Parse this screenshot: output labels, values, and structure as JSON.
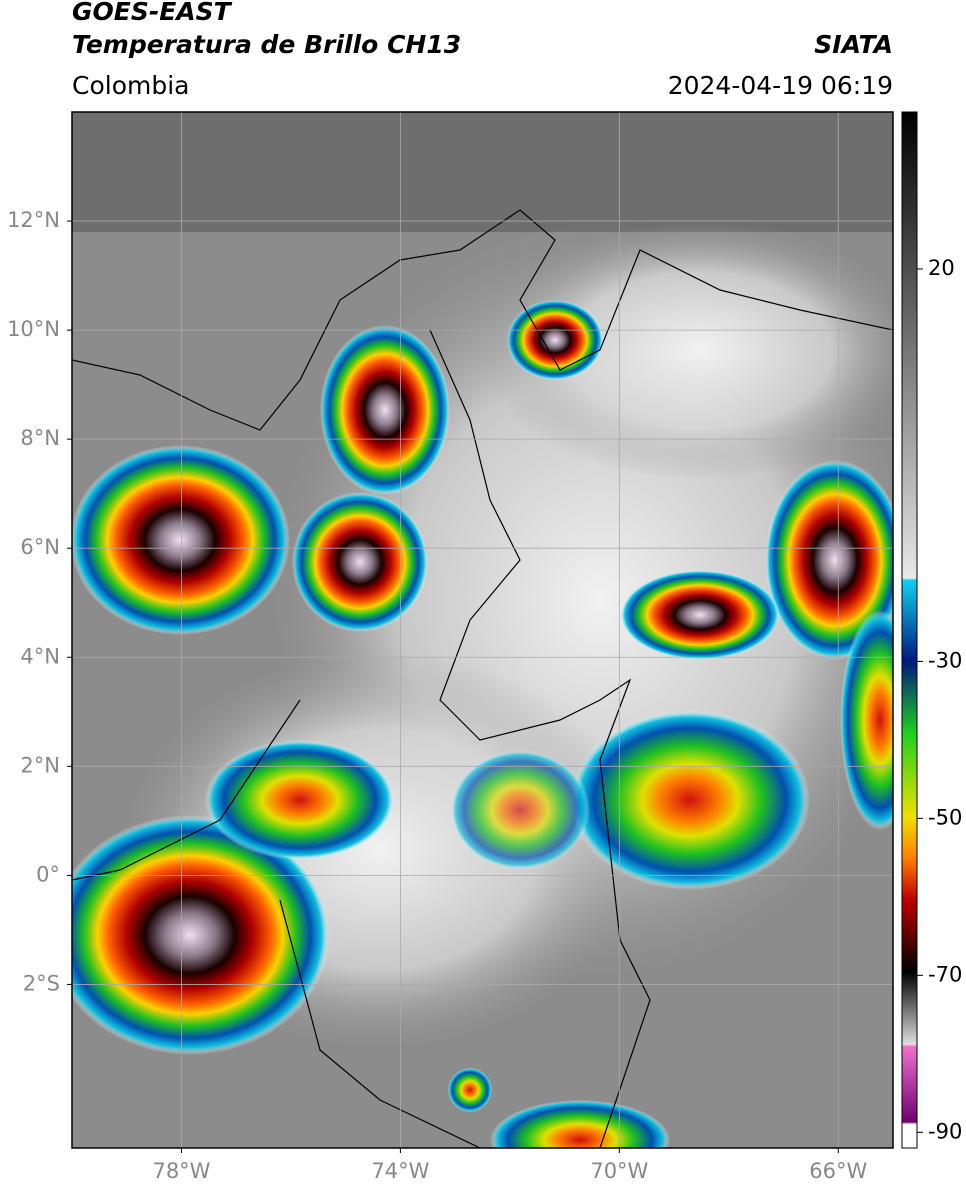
{
  "header": {
    "title": "GOES-EAST",
    "subtitle": "Temperatura de Brillo CH13",
    "source": "SIATA",
    "region": "Colombia",
    "datetime": "2024-04-19 06:19"
  },
  "map": {
    "xlim": [
      -80,
      -65
    ],
    "ylim": [
      -5,
      14
    ],
    "xticks": [
      {
        "value": -78,
        "label": "78°W"
      },
      {
        "value": -74,
        "label": "74°W"
      },
      {
        "value": -70,
        "label": "70°W"
      },
      {
        "value": -66,
        "label": "66°W"
      }
    ],
    "yticks": [
      {
        "value": 12,
        "label": "12°N"
      },
      {
        "value": 10,
        "label": "10°N"
      },
      {
        "value": 8,
        "label": "8°N"
      },
      {
        "value": 6,
        "label": "6°N"
      },
      {
        "value": 4,
        "label": "4°N"
      },
      {
        "value": 2,
        "label": "2°N"
      },
      {
        "value": 0,
        "label": "0°"
      },
      {
        "value": -2,
        "label": "2°S"
      }
    ],
    "grid": true
  },
  "colorbar": {
    "ylim": [
      -92,
      40
    ],
    "yticks": [
      20,
      -30,
      -50,
      -70,
      -90
    ]
  }
}
